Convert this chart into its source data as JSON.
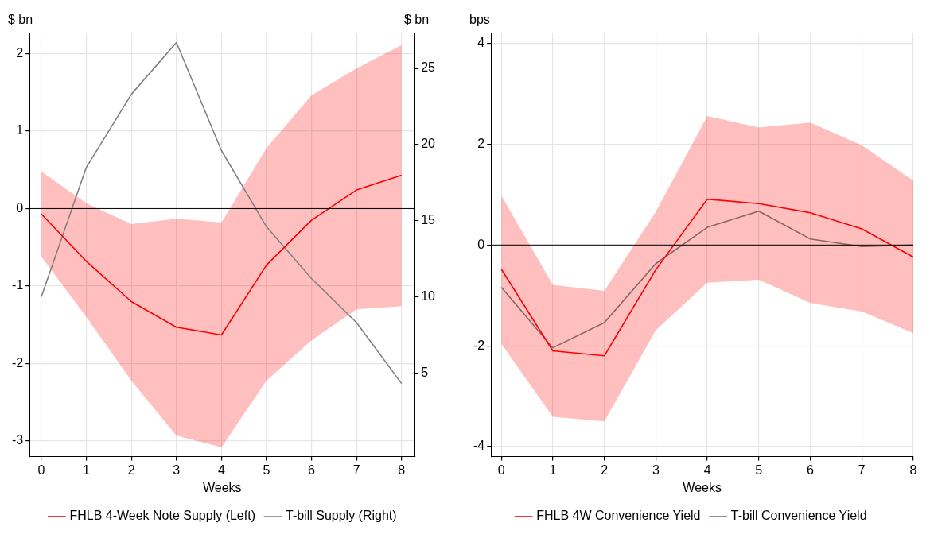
{
  "chart_data": [
    {
      "type": "line",
      "xlabel": "Weeks",
      "ylabel": "$ bn",
      "y2label": "$ bn",
      "x": [
        0,
        1,
        2,
        3,
        4,
        5,
        6,
        7,
        8
      ],
      "series": [
        {
          "name": "FHLB 4-Week Note Supply (Left)",
          "color": "#ff0000",
          "values": [
            -0.07,
            -0.68,
            -1.2,
            -1.53,
            -1.63,
            -0.73,
            -0.15,
            0.24,
            0.43
          ],
          "lower": [
            -0.62,
            -1.4,
            -2.22,
            -2.93,
            -3.08,
            -2.22,
            -1.7,
            -1.3,
            -1.26
          ],
          "upper": [
            0.48,
            0.07,
            -0.2,
            -0.13,
            -0.18,
            0.78,
            1.46,
            1.81,
            2.11
          ]
        },
        {
          "name": "T-bill Supply (Right)",
          "color": "#808080",
          "axis": "y2",
          "values": [
            10.0,
            18.5,
            23.3,
            26.7,
            19.6,
            14.6,
            11.2,
            8.3,
            4.3
          ]
        }
      ],
      "xlim": [
        -0.26,
        8.29
      ],
      "xticks": [
        0,
        1,
        2,
        3,
        4,
        5,
        6,
        7,
        8
      ],
      "ylim": [
        -3.2,
        2.26
      ],
      "yticks": [
        -3,
        -2,
        -1,
        0,
        1,
        2
      ],
      "y2lim": [
        -0.5,
        27.3
      ],
      "y2ticks": [
        5,
        10,
        15,
        20,
        25
      ],
      "ref_lines": [
        {
          "axis": "y",
          "value": 0,
          "color": "#000000"
        }
      ],
      "grid": true,
      "legend": "bottom"
    },
    {
      "type": "line",
      "xlabel": "Weeks",
      "ylabel": "bps",
      "x": [
        0,
        1,
        2,
        3,
        4,
        5,
        6,
        7,
        8
      ],
      "series": [
        {
          "name": "FHLB 4W Convenience Yield",
          "color": "#ff0000",
          "values": [
            -0.48,
            -2.1,
            -2.2,
            -0.49,
            0.91,
            0.82,
            0.64,
            0.32,
            -0.24
          ],
          "lower": [
            -1.96,
            -3.41,
            -3.5,
            -1.69,
            -0.75,
            -0.69,
            -1.15,
            -1.32,
            -1.75
          ],
          "upper": [
            0.98,
            -0.79,
            -0.91,
            0.66,
            2.56,
            2.33,
            2.43,
            1.98,
            1.28
          ]
        },
        {
          "name": "T-bill Convenience Yield",
          "color": "#8c6464",
          "values": [
            -0.84,
            -2.04,
            -1.54,
            -0.37,
            0.35,
            0.67,
            0.12,
            -0.03,
            0.0
          ]
        }
      ],
      "xlim": [
        -0.2,
        8
      ],
      "xticks": [
        0,
        1,
        2,
        3,
        4,
        5,
        6,
        7,
        8
      ],
      "ylim": [
        -4.2,
        4.2
      ],
      "yticks": [
        -4,
        -2,
        0,
        2,
        4
      ],
      "ref_lines": [
        {
          "axis": "y",
          "value": 0,
          "color": "#000000"
        }
      ],
      "grid": true,
      "legend": "bottom"
    }
  ]
}
